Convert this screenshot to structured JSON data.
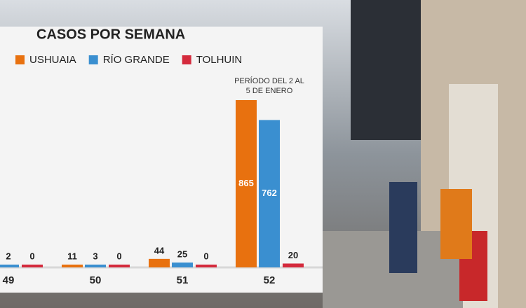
{
  "chart_data": {
    "type": "bar",
    "title": "CASOS POR SEMANA",
    "annotation": "PERÍODO DEL 2 AL 5 DE ENERO",
    "categories": [
      "49",
      "50",
      "51",
      "52"
    ],
    "series": [
      {
        "name": "USHUAIA",
        "color": "#e8710f",
        "values": [
          null,
          11,
          44,
          865
        ]
      },
      {
        "name": "RÍO GRANDE",
        "color": "#3a8fd0",
        "values": [
          2,
          3,
          25,
          762
        ]
      },
      {
        "name": "TOLHUIN",
        "color": "#d42a3c",
        "values": [
          0,
          0,
          0,
          20
        ]
      }
    ]
  }
}
